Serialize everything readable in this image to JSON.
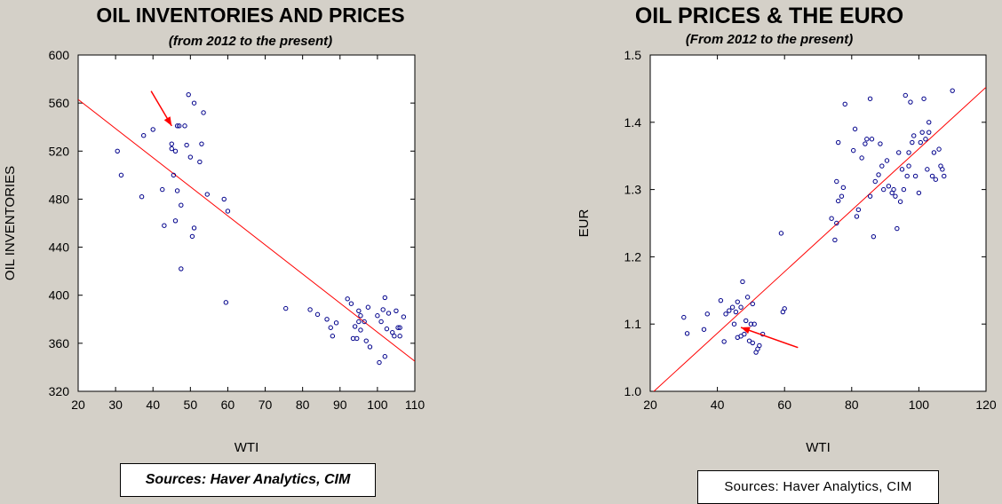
{
  "chart_data": [
    {
      "type": "scatter",
      "title": "OIL INVENTORIES AND PRICES",
      "subtitle": "(from 2012 to the present)",
      "xlabel": "WTI",
      "ylabel": "OIL INVENTORIES",
      "xlim": [
        20,
        110
      ],
      "ylim": [
        320,
        600
      ],
      "xticks": [
        20,
        30,
        40,
        50,
        60,
        70,
        80,
        90,
        100,
        110
      ],
      "yticks": [
        320,
        360,
        400,
        440,
        480,
        520,
        560,
        600
      ],
      "grid": false,
      "point_color": "#00008b",
      "fit_line": {
        "color": "#ff0000",
        "x": [
          20,
          110
        ],
        "y": [
          563,
          345
        ]
      },
      "annotation_arrow": {
        "color": "#ff0000",
        "from": [
          39.5,
          570
        ],
        "to": [
          45,
          541
        ]
      },
      "source": "Sources: Haver Analytics, CIM",
      "points": [
        [
          30.5,
          520
        ],
        [
          31.5,
          500
        ],
        [
          37,
          482
        ],
        [
          37.5,
          533
        ],
        [
          40,
          538
        ],
        [
          42.5,
          488
        ],
        [
          43,
          458
        ],
        [
          45,
          526
        ],
        [
          45,
          522
        ],
        [
          45.5,
          500
        ],
        [
          46,
          462
        ],
        [
          46,
          520
        ],
        [
          46.5,
          487
        ],
        [
          46.5,
          541
        ],
        [
          47,
          541
        ],
        [
          47.5,
          422
        ],
        [
          47.5,
          475
        ],
        [
          48.5,
          541
        ],
        [
          49,
          525
        ],
        [
          49.5,
          567
        ],
        [
          50,
          515
        ],
        [
          50.5,
          449
        ],
        [
          51,
          456
        ],
        [
          51,
          560
        ],
        [
          52.5,
          511
        ],
        [
          53,
          526
        ],
        [
          53.5,
          552
        ],
        [
          54.5,
          484
        ],
        [
          59,
          480
        ],
        [
          59.5,
          394
        ],
        [
          60,
          470
        ],
        [
          75.5,
          389
        ],
        [
          82,
          388
        ],
        [
          84,
          384
        ],
        [
          86.5,
          380
        ],
        [
          87.5,
          373
        ],
        [
          88,
          366
        ],
        [
          89,
          377
        ],
        [
          92,
          397
        ],
        [
          93,
          393
        ],
        [
          93.5,
          364
        ],
        [
          94,
          374
        ],
        [
          94.5,
          364
        ],
        [
          95,
          378
        ],
        [
          95,
          387
        ],
        [
          95.5,
          383
        ],
        [
          95.5,
          371
        ],
        [
          96.5,
          378
        ],
        [
          97,
          362
        ],
        [
          97.5,
          390
        ],
        [
          98,
          357
        ],
        [
          100,
          383
        ],
        [
          100.5,
          344
        ],
        [
          101,
          378
        ],
        [
          101.5,
          388
        ],
        [
          102,
          398
        ],
        [
          102,
          349
        ],
        [
          102.5,
          372
        ],
        [
          103,
          385
        ],
        [
          104,
          369
        ],
        [
          104.5,
          366
        ],
        [
          105,
          387
        ],
        [
          105.5,
          373
        ],
        [
          106,
          373
        ],
        [
          106,
          366
        ],
        [
          107,
          382
        ]
      ]
    },
    {
      "type": "scatter",
      "title": "OIL PRICES & THE EURO",
      "subtitle": "(From 2012 to the present)",
      "xlabel": "WTI",
      "ylabel": "EUR",
      "xlim": [
        20,
        120
      ],
      "ylim": [
        1.0,
        1.5
      ],
      "xticks": [
        20,
        40,
        60,
        80,
        100,
        120
      ],
      "yticks": [
        1.0,
        1.1,
        1.2,
        1.3,
        1.4,
        1.5
      ],
      "grid": false,
      "point_color": "#00008b",
      "fit_line": {
        "color": "#ff0000",
        "x": [
          20,
          120
        ],
        "y": [
          0.995,
          1.452
        ]
      },
      "annotation_arrow": {
        "color": "#ff0000",
        "from": [
          64,
          1.065
        ],
        "to": [
          47,
          1.095
        ]
      },
      "source": "Sources: Haver Analytics, CIM",
      "points": [
        [
          30,
          1.11
        ],
        [
          31,
          1.086
        ],
        [
          36,
          1.092
        ],
        [
          37,
          1.115
        ],
        [
          41,
          1.135
        ],
        [
          42,
          1.074
        ],
        [
          42.5,
          1.115
        ],
        [
          43.5,
          1.12
        ],
        [
          44.5,
          1.125
        ],
        [
          45,
          1.1
        ],
        [
          45.5,
          1.118
        ],
        [
          46,
          1.133
        ],
        [
          46,
          1.08
        ],
        [
          47,
          1.125
        ],
        [
          47,
          1.082
        ],
        [
          47.5,
          1.163
        ],
        [
          48,
          1.085
        ],
        [
          48.5,
          1.105
        ],
        [
          49,
          1.14
        ],
        [
          49.5,
          1.075
        ],
        [
          50,
          1.1
        ],
        [
          50.5,
          1.13
        ],
        [
          50.5,
          1.072
        ],
        [
          51,
          1.1
        ],
        [
          51.5,
          1.058
        ],
        [
          52,
          1.063
        ],
        [
          52.5,
          1.068
        ],
        [
          53.5,
          1.085
        ],
        [
          59,
          1.235
        ],
        [
          59.5,
          1.118
        ],
        [
          60,
          1.123
        ],
        [
          74,
          1.257
        ],
        [
          75,
          1.225
        ],
        [
          75.5,
          1.312
        ],
        [
          75.5,
          1.25
        ],
        [
          76,
          1.37
        ],
        [
          76,
          1.283
        ],
        [
          77,
          1.29
        ],
        [
          77.5,
          1.303
        ],
        [
          78,
          1.427
        ],
        [
          80.5,
          1.358
        ],
        [
          81,
          1.39
        ],
        [
          81.5,
          1.26
        ],
        [
          82,
          1.27
        ],
        [
          83,
          1.347
        ],
        [
          84,
          1.368
        ],
        [
          84.5,
          1.375
        ],
        [
          85.5,
          1.435
        ],
        [
          85.5,
          1.29
        ],
        [
          86,
          1.375
        ],
        [
          86.5,
          1.23
        ],
        [
          87,
          1.312
        ],
        [
          88,
          1.322
        ],
        [
          88.5,
          1.368
        ],
        [
          89,
          1.335
        ],
        [
          89.5,
          1.3
        ],
        [
          90.5,
          1.343
        ],
        [
          91,
          1.305
        ],
        [
          92,
          1.295
        ],
        [
          92.5,
          1.3
        ],
        [
          93,
          1.29
        ],
        [
          93.5,
          1.242
        ],
        [
          94,
          1.355
        ],
        [
          94.5,
          1.282
        ],
        [
          95,
          1.33
        ],
        [
          95.5,
          1.3
        ],
        [
          96,
          1.44
        ],
        [
          96.5,
          1.32
        ],
        [
          97,
          1.355
        ],
        [
          97,
          1.335
        ],
        [
          97.5,
          1.43
        ],
        [
          98,
          1.37
        ],
        [
          98.5,
          1.38
        ],
        [
          99,
          1.32
        ],
        [
          100,
          1.295
        ],
        [
          100.5,
          1.37
        ],
        [
          101,
          1.385
        ],
        [
          101.5,
          1.435
        ],
        [
          102,
          1.375
        ],
        [
          102.5,
          1.33
        ],
        [
          103,
          1.385
        ],
        [
          103,
          1.4
        ],
        [
          104,
          1.32
        ],
        [
          104.5,
          1.355
        ],
        [
          105,
          1.315
        ],
        [
          106,
          1.36
        ],
        [
          106.5,
          1.335
        ],
        [
          107,
          1.33
        ],
        [
          107.5,
          1.32
        ],
        [
          110,
          1.447
        ]
      ]
    }
  ]
}
